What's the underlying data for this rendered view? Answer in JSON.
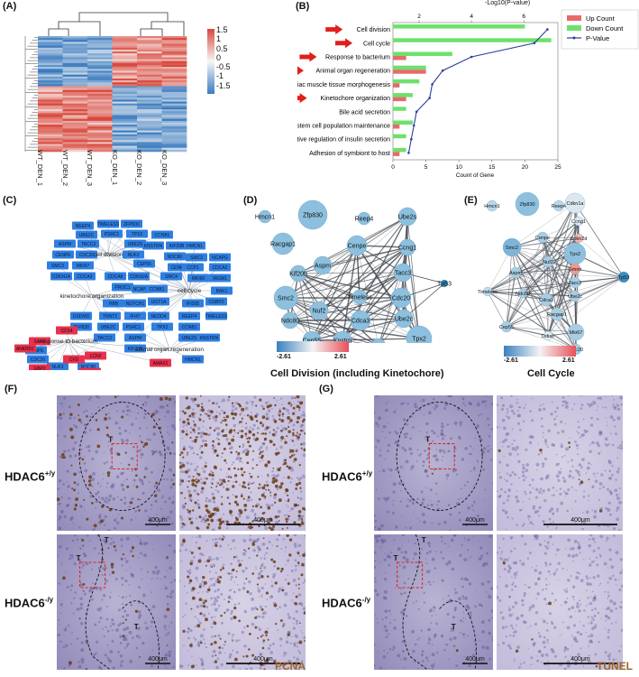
{
  "panels": {
    "A": {
      "label": "(A)",
      "samples": [
        "WT_DEN_1",
        "WT_DEN_2",
        "WT_DEN_3",
        "KO_DEN_1",
        "KO_DEN_2",
        "KO_DEN_3"
      ],
      "colorbar_ticks": [
        "1.5",
        "1",
        "0.5",
        "0",
        "-0.5",
        "-1",
        "-1.5"
      ],
      "colors": {
        "high": "#d9473b",
        "mid": "#f7f7f7",
        "low": "#3a7bbf"
      }
    },
    "B": {
      "label": "(B)",
      "top_axis_title": "-Log10(P-value)",
      "top_ticks": [
        "2",
        "4",
        "6"
      ],
      "bottom_ticks": [
        "0",
        "5",
        "10",
        "15",
        "20",
        "25"
      ],
      "xlabel": "Count of Gene",
      "legend": [
        "Up Count",
        "Down Count",
        "P-Value"
      ],
      "terms": [
        "Cell division",
        "Cell cycle",
        "Response to bacterium",
        "Animal organ regeneration",
        "Cardiac muscle tissue morphogenesis",
        "Kinetochore organization",
        "Bile acid secretion",
        "Neuronal stem cell population maintenance",
        "Positive regulation of insulin secretion",
        "Adhesion of symbiont to host"
      ],
      "highlighted": [
        0,
        1,
        2,
        3,
        5
      ],
      "colors": {
        "up": "#e8696b",
        "down": "#6ee06b",
        "pval": "#2c3d9e",
        "arrow": "#e0201b"
      }
    },
    "C": {
      "label": "(C)",
      "hubs": [
        "cell division",
        "kinetochore organization",
        "cell cycle",
        "response to bacterium",
        "animal organ regeneration"
      ],
      "blue_nodes": [
        "REEP4",
        "TIMELESS",
        "ZFP830",
        "UBE2C",
        "PSRC1",
        "TPX2",
        "CCNB1",
        "ASPM",
        "TACC3",
        "UBE2S",
        "KNSTRN",
        "KIF20B",
        "HMCN1",
        "CENPE",
        "CDC20",
        "NUF2",
        "NDC80",
        "SMC2",
        "NCAPG",
        "SMC3",
        "MKI67",
        "CEP55",
        "CENPF",
        "CCP1",
        "CDCA2",
        "CDKN1A",
        "CDCA3",
        "CDCA8",
        "CDKN2A",
        "SMC4",
        "MKI66",
        "IRGM1",
        "PROC1",
        "NCAPG2",
        "CCNB1_2",
        "BAK1",
        "UGT1A",
        "NOTCH1",
        "HBB",
        "IFI205",
        "CGBP2",
        "GSDMD",
        "TNNT2",
        "IFI47",
        "NEDD4"
      ],
      "red_nodes": [
        "CD14",
        "SAA3",
        "ANKRD1",
        "GBP2",
        "CFD",
        "LCN2",
        "TREM2",
        "AMAX1"
      ]
    },
    "D": {
      "label": "(D)",
      "title": "Cell Division (including Kinetochore)",
      "nodes": [
        "Hmcn1",
        "Zfp830",
        "Reep4",
        "Ube2s",
        "Racgap1",
        "Cenpe",
        "Ccng1",
        "Aspm",
        "Kif20b",
        "Tacc3",
        "Tipin",
        "Timeless",
        "Cdc20",
        "Smc2",
        "Nuf2",
        "Ube2c",
        "Ndc80",
        "Cdca3",
        "Cep55",
        "Knstrn",
        "Psrc1",
        "Tpx2"
      ],
      "colorbar": [
        "-2.61",
        "2.61"
      ]
    },
    "E": {
      "label": "(E)",
      "title": "Cell Cycle",
      "nodes": [
        "Hmcn1",
        "Zfp830",
        "Reep4",
        "Cdkn1a",
        "Ccng1",
        "Cdkn2d",
        "Cenpe",
        "Smc2",
        "Tpx2",
        "Aspm",
        "Nuf2",
        "Gmnn",
        "Tacc3",
        "Ube2c",
        "Timeless",
        "Ndc80",
        "Cdca3",
        "Racgap1",
        "Mki67",
        "Cep55",
        "Ddias",
        "Cdc20",
        "Tp53"
      ],
      "colorbar": [
        "-2.61",
        "2.61"
      ]
    },
    "F": {
      "label": "(F)",
      "rows": [
        "HDAC6",
        "HDAC6"
      ],
      "sups": [
        "+/y",
        "-/y"
      ],
      "scale_low": "400μm",
      "scale_high": "400μm",
      "tumor_marker": "T",
      "stain": "PCNA"
    },
    "G": {
      "label": "(G)",
      "rows": [
        "HDAC6",
        "HDAC6"
      ],
      "sups": [
        "+/y",
        "-/y"
      ],
      "scale_low": "400μm",
      "scale_high": "400μm",
      "tumor_marker": "T",
      "stain": "TUNEL"
    }
  },
  "chart_data": {
    "type": "bar",
    "categories": [
      "Cell division",
      "Cell cycle",
      "Response to bacterium",
      "Animal organ regeneration",
      "Cardiac muscle tissue morphogenesis",
      "Kinetochore organization",
      "Bile acid secretion",
      "Neuronal stem cell population maintenance",
      "Positive regulation of insulin secretion",
      "Adhesion of symbiont to host"
    ],
    "series": [
      {
        "name": "Up Count",
        "values": [
          0,
          0,
          2,
          5,
          1,
          2,
          0,
          1,
          0,
          1
        ]
      },
      {
        "name": "Down Count",
        "values": [
          20,
          24,
          9,
          5,
          4,
          3,
          2,
          3,
          2,
          2
        ]
      },
      {
        "name": "P-Value",
        "values": [
          6.9,
          6.4,
          4.0,
          2.9,
          2.5,
          2.4,
          1.9,
          1.8,
          1.7,
          1.6
        ]
      }
    ],
    "xlabel": "Count of Gene",
    "x2label": "-Log10(P-value)",
    "xlim": [
      0,
      25
    ],
    "x2lim": [
      1,
      7.3
    ]
  }
}
